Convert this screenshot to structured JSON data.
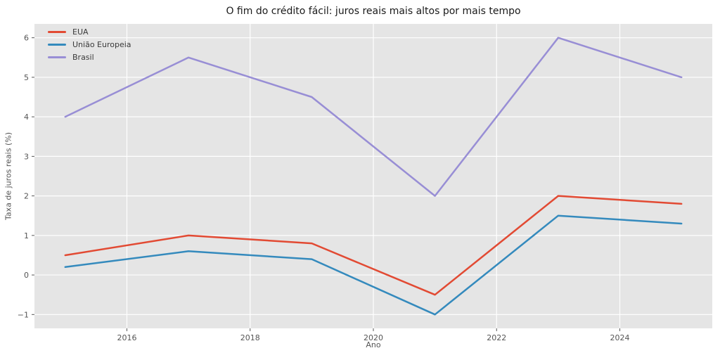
{
  "chart_data": {
    "type": "line",
    "title": "O fim do crédito fácil: juros reais mais altos por mais tempo",
    "xlabel": "Ano",
    "ylabel": "Taxa de juros reais (%)",
    "x": [
      2015,
      2017,
      2019,
      2021,
      2023,
      2025
    ],
    "series": [
      {
        "name": "EUA",
        "color": "#E24A33",
        "values": [
          0.5,
          1.0,
          0.8,
          -0.5,
          2.0,
          1.8
        ]
      },
      {
        "name": "União Europeia",
        "color": "#348ABD",
        "values": [
          0.2,
          0.6,
          0.4,
          -1.0,
          1.5,
          1.3
        ]
      },
      {
        "name": "Brasil",
        "color": "#988ED5",
        "values": [
          4.0,
          5.5,
          4.5,
          2.0,
          6.0,
          5.0
        ]
      }
    ],
    "xticks": [
      2016,
      2018,
      2020,
      2022,
      2024
    ],
    "yticks": [
      -1,
      0,
      1,
      2,
      3,
      4,
      5,
      6
    ],
    "xlim": [
      2014.5,
      2025.5
    ],
    "ylim": [
      -1.35,
      6.35
    ],
    "grid": true,
    "legend_position": "upper-left",
    "colors": {
      "plot_background": "#E5E5E5",
      "gridline": "#FFFFFF",
      "tick": "#555555",
      "title_text": "#1A1A1A",
      "figure_background": "#FFFFFF"
    }
  }
}
